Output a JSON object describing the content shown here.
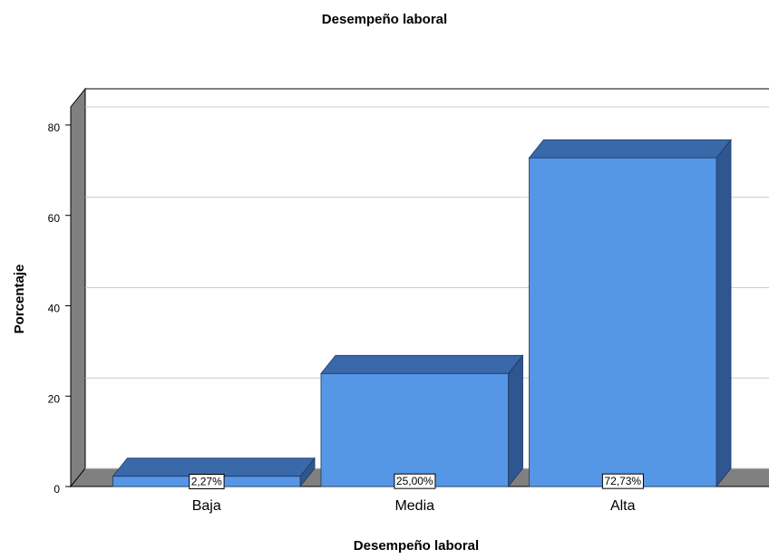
{
  "chart_data": {
    "type": "bar3d",
    "title": "Desempeño laboral",
    "x_label": "Desempeño laboral",
    "y_label": "Porcentaje",
    "categories": [
      "Baja",
      "Media",
      "Alta"
    ],
    "values": [
      2.27,
      25,
      72.73
    ],
    "value_labels": [
      "2,27%",
      "25,00%",
      "72,73%"
    ],
    "color": "#5596e6",
    "ylim": [
      0,
      84
    ],
    "yticks": [
      0,
      20,
      40,
      60,
      80
    ],
    "grid": true
  }
}
